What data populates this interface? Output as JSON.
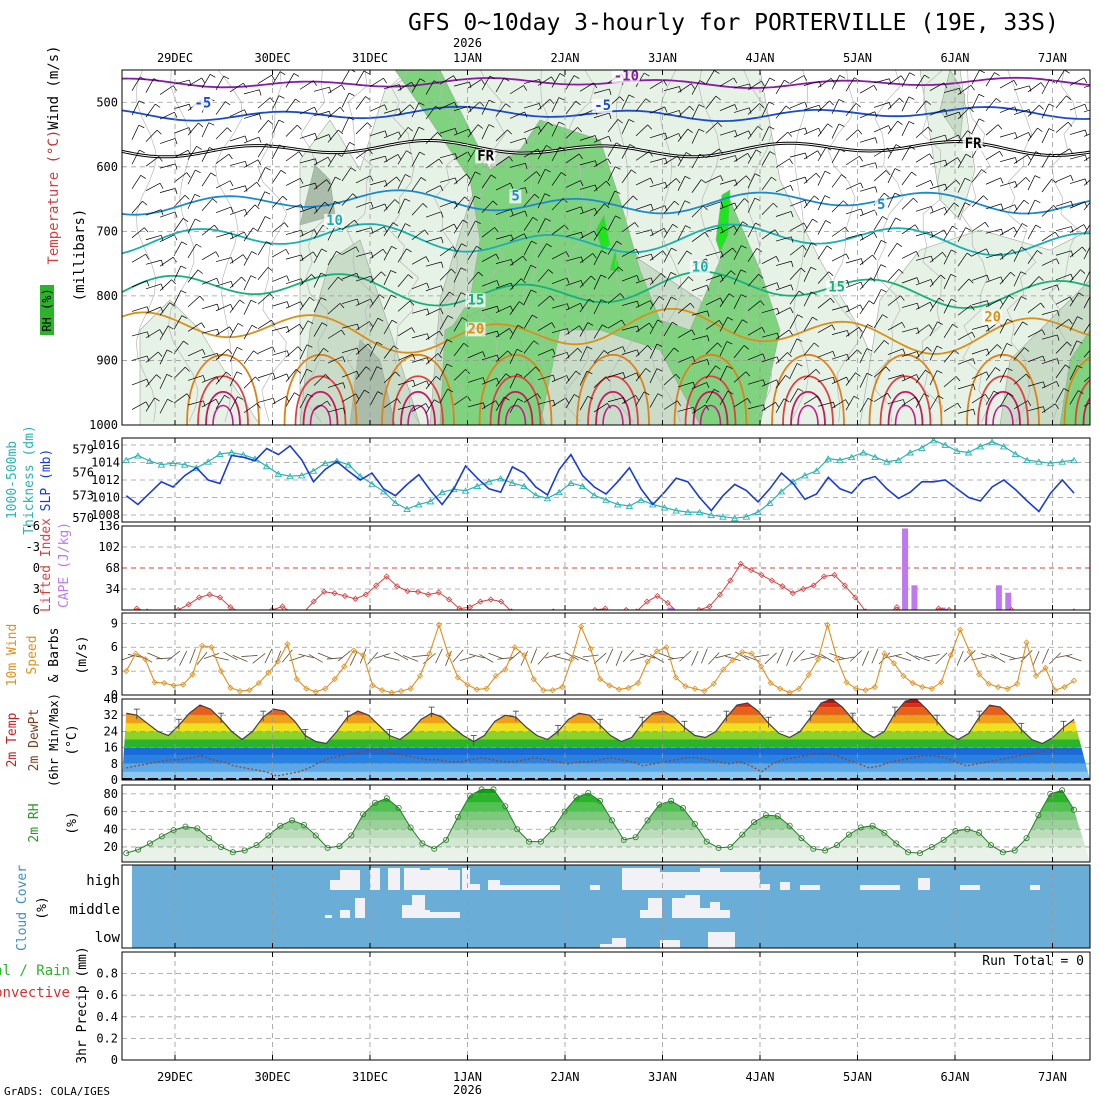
{
  "title": "GFS 0~10day 3-hourly for PORTERVILLE (19E, 33S)",
  "year_label": "2026",
  "credit": "GrADS: COLA/IGES",
  "run_total_label": "Run Total = 0",
  "colors": {
    "rh_light": "#e6f2e6",
    "rh_mid": "#c8dcc8",
    "rh_dark": "#aabcaa",
    "rh_green": "#7fd37f",
    "rh_bright": "#1ee61e",
    "slp": "#1a3cd6",
    "thickness": "#2ab3b3",
    "lifted_index": "#d84040",
    "cape": "#c078f0",
    "wind_speed": "#e0901e",
    "barb": "#5a4a3a",
    "rh2m": "#2a9a2a",
    "cloud_bg": "#6aaed8",
    "cloud_fill": "#f2f2f6"
  },
  "chart_data": [
    {
      "type": "heatmap",
      "panel": "upper-air",
      "x_labels": [
        "29DEC",
        "30DEC",
        "31DEC",
        "1JAN",
        "2JAN",
        "3JAN",
        "4JAN",
        "5JAN",
        "6JAN",
        "7JAN"
      ],
      "y_ticks": [
        500,
        600,
        700,
        800,
        900,
        1000
      ],
      "ylim": [
        450,
        1000
      ],
      "ylabel": "(millibars)",
      "side_labels": [
        "Wind (m/s)",
        "Temperature (°C)",
        "RH (%)"
      ],
      "isotherm_labels": [
        {
          "text": "-10",
          "color": "#8a1aa8",
          "day": 4.5,
          "p": 466
        },
        {
          "text": "-5",
          "color": "#1a4ad0",
          "day": 0.2,
          "p": 508
        },
        {
          "text": "-5",
          "color": "#1a4ad0",
          "day": 4.3,
          "p": 512
        },
        {
          "text": "FR",
          "color": "#000000",
          "day": 3.1,
          "p": 590
        },
        {
          "text": "FR",
          "color": "#000000",
          "day": 8.1,
          "p": 571
        },
        {
          "text": "5",
          "color": "#1a8ad0",
          "day": 3.45,
          "p": 652
        },
        {
          "text": "5",
          "color": "#1a8ad0",
          "day": 7.2,
          "p": 665
        },
        {
          "text": "10",
          "color": "#18b0b0",
          "day": 1.55,
          "p": 690
        },
        {
          "text": "10",
          "color": "#18b0b0",
          "day": 5.3,
          "p": 762
        },
        {
          "text": "15",
          "color": "#18b07a",
          "day": 3.0,
          "p": 813
        },
        {
          "text": "15",
          "color": "#18b07a",
          "day": 6.7,
          "p": 793
        },
        {
          "text": "20",
          "color": "#d89018",
          "day": 3.0,
          "p": 858
        },
        {
          "text": "20",
          "color": "#d89018",
          "day": 8.3,
          "p": 840
        }
      ],
      "isotherms": [
        {
          "color": "#8a1aa8",
          "base": 470,
          "amp": 5
        },
        {
          "color": "#1a4ad0",
          "base": 518,
          "amp": 7
        },
        {
          "color": "#000000",
          "base": 572,
          "amp": 8
        },
        {
          "color": "#1a8ad0",
          "base": 655,
          "amp": 12
        },
        {
          "color": "#18b0b0",
          "base": 712,
          "amp": 16
        },
        {
          "color": "#18b07a",
          "base": 790,
          "amp": 18
        },
        {
          "color": "#d89018",
          "base": 855,
          "amp": 22
        }
      ]
    },
    {
      "type": "line",
      "panel": "slp-thickness",
      "ylabel_left": "1000-500mb Thickness (dm)",
      "ylabel_right": "SLP (mb)",
      "thickness_ticks": [
        570,
        573,
        576,
        579
      ],
      "slp_ticks": [
        1008,
        1010,
        1012,
        1014,
        1016
      ],
      "slp_lim": [
        1007.2,
        1016.8
      ],
      "thickness_lim": [
        569.5,
        580.5
      ],
      "series": [
        {
          "name": "SLP",
          "values": [
            1010.2,
            1009.2,
            1010.5,
            1011.8,
            1011.2,
            1012.5,
            1013.4,
            1012.0,
            1011.6,
            1014.8,
            1014.6,
            1014.2,
            1015.6,
            1014.9,
            1015.9,
            1014.3,
            1011.8,
            1013.2,
            1014.1,
            1013.0,
            1012.0,
            1012.8,
            1011.0,
            1010.2,
            1011.5,
            1012.6,
            1010.8,
            1009.2,
            1011.0,
            1013.6,
            1012.2,
            1011.0,
            1010.6,
            1013.5,
            1012.8,
            1011.2,
            1010.3,
            1013.2,
            1014.9,
            1012.5,
            1011.2,
            1010.4,
            1011.8,
            1013.4,
            1011.0,
            1009.2,
            1010.6,
            1012.2,
            1011.8,
            1010.0,
            1008.5,
            1010.2,
            1011.5,
            1010.8,
            1009.5,
            1011.0,
            1012.8,
            1011.6,
            1009.8,
            1010.4,
            1012.3,
            1011.0,
            1010.5,
            1012.0,
            1012.4,
            1011.0,
            1009.9,
            1010.6,
            1011.8,
            1011.8,
            1012.0,
            1011.0,
            1010.0,
            1009.6,
            1011.2,
            1012.0,
            1010.9,
            1009.6,
            1008.4,
            1010.5,
            1012.0,
            1010.5
          ]
        },
        {
          "name": "Thickness",
          "values": [
            577.6,
            578.2,
            577.5,
            577.0,
            577.2,
            577.0,
            576.6,
            577.4,
            578.4,
            578.6,
            578.3,
            577.8,
            576.8,
            575.8,
            575.5,
            575.6,
            576.2,
            577.2,
            577.5,
            577.0,
            575.5,
            574.5,
            573.5,
            572.0,
            571.2,
            571.8,
            572.2,
            573.4,
            573.8,
            573.6,
            574.2,
            574.8,
            575.2,
            574.6,
            574.2,
            573.0,
            572.6,
            573.4,
            574.6,
            574.2,
            573.0,
            572.4,
            571.8,
            571.6,
            572.4,
            571.8,
            571.4,
            571.0,
            570.8,
            570.8,
            570.4,
            570.2,
            570.0,
            570.2,
            570.8,
            572.0,
            573.5,
            574.8,
            575.6,
            576.2,
            577.8,
            577.6,
            578.0,
            578.6,
            578.0,
            577.4,
            577.6,
            578.6,
            579.2,
            580.2,
            579.6,
            578.8,
            578.6,
            579.4,
            580.0,
            579.4,
            578.4,
            577.6,
            577.4,
            577.2,
            577.4,
            577.6
          ]
        }
      ]
    },
    {
      "type": "bar",
      "panel": "lifted-index-cape",
      "ylabel_left": "Lifted Index",
      "ylabel_right": "CAPE (J/kg)",
      "li_ticks": [
        -6,
        -3,
        0,
        3,
        6
      ],
      "li_labels": [
        "-6",
        "-3",
        "0",
        "3",
        "6"
      ],
      "cape_ticks": [
        34,
        68,
        102,
        136
      ],
      "li_lim": [
        -6,
        6
      ],
      "cape_lim": [
        0,
        136
      ],
      "series": [
        {
          "name": "Lifted Index",
          "values": [
            6.5,
            5.8,
            6.2,
            7.0,
            6.5,
            6.0,
            5.2,
            4.2,
            3.8,
            4.2,
            5.6,
            6.4,
            7.0,
            6.6,
            6.0,
            5.5,
            6.5,
            6.4,
            4.8,
            3.4,
            3.6,
            4.0,
            4.4,
            3.8,
            2.5,
            1.2,
            2.6,
            3.3,
            3.4,
            3.8,
            3.5,
            4.5,
            5.8,
            5.6,
            4.8,
            4.5,
            4.8,
            6.2,
            6.8,
            6.4,
            6.5,
            6.2,
            7.0,
            6.5,
            6.6,
            6.0,
            5.8,
            6.8,
            6.0,
            6.2,
            4.8,
            4.0,
            5.0,
            6.4,
            6.8,
            6.0,
            5.5,
            3.8,
            1.8,
            -0.6,
            0.3,
            1.0,
            1.8,
            2.6,
            3.6,
            3.0,
            2.5,
            1.2,
            1.0,
            2.5,
            4.2,
            6.2,
            6.4,
            6.6,
            5.6,
            6.8,
            6.5,
            6.4,
            5.8,
            6.0,
            6.4,
            6.8,
            6.6,
            6.5,
            6.6,
            6.0,
            6.4,
            6.6,
            6.8,
            6.4,
            6.6,
            6.2
          ]
        },
        {
          "name": "CAPE",
          "values": [
            0,
            0,
            0,
            0,
            0,
            0,
            0,
            0,
            0,
            0,
            0,
            0,
            0,
            0,
            0,
            0,
            0,
            0,
            0,
            0,
            0,
            0,
            0,
            0,
            0,
            0,
            0,
            0,
            0,
            0,
            0,
            0,
            0,
            0,
            0,
            0,
            0,
            0,
            0,
            0,
            0,
            0,
            0,
            0,
            0,
            0,
            0,
            0,
            0,
            0,
            0,
            0,
            0,
            0,
            0,
            0,
            0,
            0,
            4,
            0,
            0,
            0,
            0,
            0,
            0,
            0,
            0,
            0,
            0,
            0,
            0,
            0,
            0,
            0,
            0,
            0,
            0,
            0,
            0,
            0,
            0,
            0,
            0,
            132,
            40,
            0,
            0,
            4,
            0,
            0,
            0,
            0,
            0,
            40,
            28,
            0,
            0,
            0,
            0,
            0,
            0,
            0
          ]
        }
      ]
    },
    {
      "type": "line",
      "panel": "wind10m",
      "ylabel": "10m Wind Speed & Barbs (m/s)",
      "yticks": [
        0,
        3,
        6,
        9
      ],
      "ylim": [
        0,
        10.3
      ],
      "series": [
        {
          "name": "Speed",
          "values": [
            3.0,
            5.2,
            4.5,
            1.6,
            1.5,
            1.2,
            1.3,
            2.6,
            6.2,
            6.0,
            3.0,
            0.9,
            0.5,
            0.6,
            1.5,
            2.8,
            4.2,
            6.4,
            2.0,
            0.8,
            0.4,
            0.8,
            2.0,
            3.6,
            5.6,
            5.0,
            1.2,
            0.6,
            0.3,
            0.5,
            0.8,
            2.4,
            5.2,
            8.8,
            5.0,
            2.2,
            1.3,
            0.7,
            0.8,
            2.4,
            3.2,
            6.0,
            5.0,
            2.0,
            0.6,
            0.6,
            1.0,
            4.5,
            8.6,
            5.8,
            2.0,
            1.2,
            0.7,
            0.9,
            1.5,
            4.2,
            5.5,
            6.0,
            2.2,
            1.1,
            0.8,
            0.5,
            1.4,
            3.2,
            4.4,
            5.4,
            5.2,
            3.6,
            1.5,
            0.8,
            0.3,
            0.8,
            2.5,
            4.5,
            8.8,
            4.6,
            1.6,
            0.8,
            0.6,
            1.0,
            5.2,
            4.0,
            2.4,
            1.5,
            1.0,
            0.8,
            1.6,
            5.0,
            8.2,
            5.4,
            2.6,
            1.4,
            1.0,
            0.8,
            1.4,
            6.6,
            2.4,
            3.4,
            0.6,
            1.0,
            1.8
          ]
        }
      ]
    },
    {
      "type": "area",
      "panel": "temp2m",
      "ylabel": "2m Temp 2m DewPt (6hr Min/Max) (°C)",
      "yticks": [
        0,
        8,
        16,
        24,
        32,
        40
      ],
      "ylim": [
        0,
        40
      ],
      "series": [
        {
          "name": "Temp",
          "values": [
            33,
            32,
            28,
            24,
            22,
            27,
            33,
            37,
            35,
            30,
            24,
            20,
            24,
            31,
            35,
            34,
            29,
            22,
            19,
            18,
            24,
            31,
            34,
            32,
            27,
            22,
            20,
            24,
            30,
            33,
            31,
            26,
            22,
            19,
            22,
            29,
            32,
            31,
            26,
            22,
            20,
            24,
            30,
            33,
            32,
            27,
            22,
            19,
            21,
            28,
            33,
            34,
            31,
            26,
            22,
            21,
            24,
            31,
            37,
            38,
            34,
            28,
            23,
            21,
            24,
            31,
            38,
            40,
            36,
            30,
            24,
            21,
            24,
            33,
            39,
            40,
            35,
            29,
            23,
            20,
            23,
            31,
            37,
            36,
            31,
            25,
            20,
            18,
            21,
            26,
            30
          ]
        },
        {
          "name": "DewPt",
          "values": [
            6,
            7,
            8,
            9,
            10,
            10,
            11,
            12,
            10,
            9,
            7,
            6,
            5,
            4,
            2,
            3,
            4,
            6,
            9,
            11,
            12,
            13,
            14,
            15,
            14,
            13,
            12,
            11,
            10,
            10,
            9,
            9,
            10,
            11,
            10,
            9,
            9,
            10,
            11,
            10,
            9,
            8,
            9,
            9,
            10,
            11,
            10,
            9,
            7,
            8,
            9,
            10,
            11,
            11,
            10,
            9,
            8,
            9,
            7,
            4,
            8,
            10,
            11,
            12,
            13,
            13,
            12,
            10,
            8,
            6,
            7,
            9,
            10,
            11,
            12,
            12,
            11,
            9,
            7,
            8,
            9,
            10,
            11,
            12,
            13,
            14,
            15,
            15,
            15
          ]
        }
      ]
    },
    {
      "type": "area",
      "panel": "rh2m",
      "ylabel": "2m RH (%)",
      "yticks": [
        20,
        40,
        60,
        80
      ],
      "ylim": [
        3,
        90
      ],
      "series": [
        {
          "name": "RH",
          "values": [
            13,
            17,
            24,
            32,
            39,
            43,
            41,
            30,
            20,
            14,
            16,
            22,
            33,
            44,
            50,
            45,
            33,
            19,
            21,
            33,
            57,
            70,
            75,
            64,
            42,
            24,
            18,
            28,
            54,
            78,
            85,
            85,
            66,
            40,
            26,
            26,
            40,
            60,
            76,
            81,
            72,
            50,
            28,
            31,
            50,
            68,
            72,
            64,
            46,
            26,
            19,
            20,
            34,
            48,
            56,
            55,
            44,
            30,
            18,
            16,
            22,
            34,
            42,
            44,
            36,
            24,
            14,
            13,
            20,
            28,
            38,
            40,
            36,
            22,
            14,
            16,
            30,
            56,
            80,
            84,
            62
          ]
        }
      ]
    },
    {
      "type": "heatmap",
      "panel": "cloud-cover",
      "ylabel": "Cloud Cover (%)",
      "levels": [
        "high",
        "middle",
        "low"
      ]
    },
    {
      "type": "bar",
      "panel": "precip",
      "ylabel": "3hr Precip (mm)",
      "side_labels": [
        "Total / Rain",
        "Convective"
      ],
      "yticks": [
        0,
        0.2,
        0.4,
        0.6,
        0.8
      ],
      "ylim": [
        0,
        1
      ],
      "series": [
        {
          "name": "Total",
          "values": []
        }
      ]
    }
  ]
}
